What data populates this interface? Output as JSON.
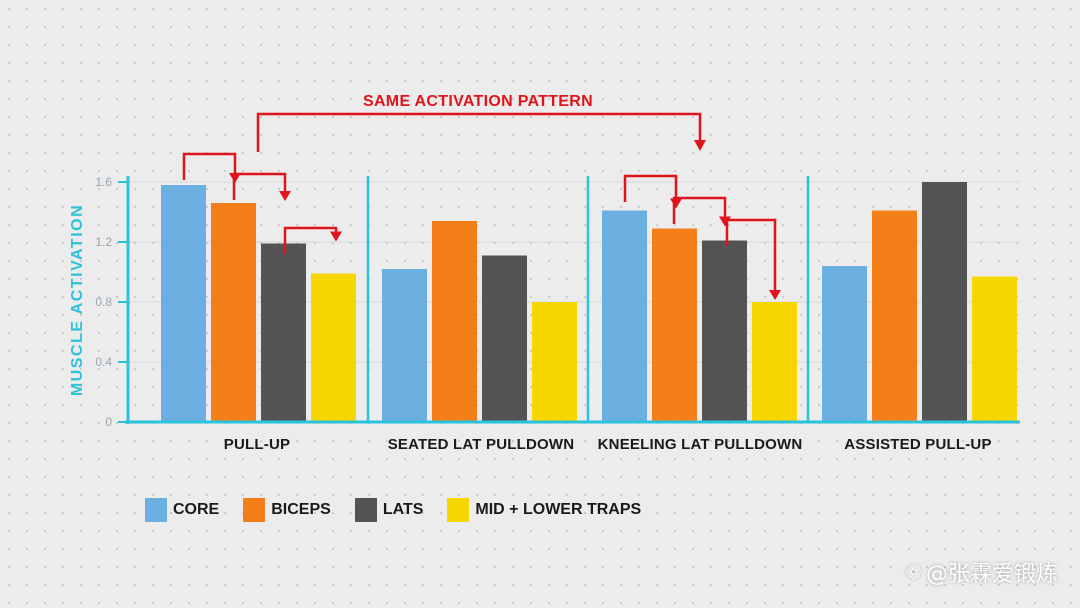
{
  "chart_data": {
    "type": "bar",
    "categories": [
      "PULL-UP",
      "SEATED LAT PULLDOWN",
      "KNEELING LAT PULLDOWN",
      "ASSISTED PULL-UP"
    ],
    "series": [
      {
        "name": "CORE",
        "color": "#6aafe0",
        "values": [
          1.58,
          1.02,
          1.41,
          1.04
        ]
      },
      {
        "name": "BICEPS",
        "color": "#f47e18",
        "values": [
          1.46,
          1.34,
          1.29,
          1.41
        ]
      },
      {
        "name": "LATS",
        "color": "#545454",
        "values": [
          1.19,
          1.11,
          1.21,
          1.6
        ]
      },
      {
        "name": "MID + LOWER TRAPS",
        "color": "#f6d600",
        "values": [
          0.99,
          0.8,
          0.8,
          0.97
        ]
      }
    ],
    "ylabel": "MUSCLE ACTIVATION",
    "ylim": [
      0,
      1.6
    ],
    "yticks": [
      "0",
      "0.4",
      "0.8",
      "1.2",
      "1.6"
    ],
    "annotation": "SAME ACTIVATION PATTERN",
    "axis_color": "#29c4dc",
    "arrow_color": "#e0141c"
  },
  "watermark": {
    "icon": "camera-paw-icon",
    "text": "@张霖爱锻炼"
  }
}
